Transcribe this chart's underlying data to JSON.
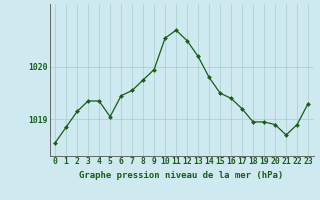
{
  "x": [
    0,
    1,
    2,
    3,
    4,
    5,
    6,
    7,
    8,
    9,
    10,
    11,
    12,
    13,
    14,
    15,
    16,
    17,
    18,
    19,
    20,
    21,
    22,
    23
  ],
  "y": [
    1018.55,
    1018.85,
    1019.15,
    1019.35,
    1019.35,
    1019.05,
    1019.45,
    1019.55,
    1019.75,
    1019.95,
    1020.55,
    1020.7,
    1020.5,
    1020.2,
    1019.8,
    1019.5,
    1019.4,
    1019.2,
    1018.95,
    1018.95,
    1018.9,
    1018.7,
    1018.9,
    1019.3
  ],
  "line_color": "#1a5c1a",
  "marker_color": "#1a5c1a",
  "bg_color": "#ceeaf0",
  "grid_color": "#aacccc",
  "title": "Graphe pression niveau de la mer (hPa)",
  "xlabel_ticks": [
    0,
    1,
    2,
    3,
    4,
    5,
    6,
    7,
    8,
    9,
    10,
    11,
    12,
    13,
    14,
    15,
    16,
    17,
    18,
    19,
    20,
    21,
    22,
    23
  ],
  "ytick_labels": [
    1019,
    1020
  ],
  "ylim_min": 1018.3,
  "ylim_max": 1021.2,
  "title_fontsize": 6.5,
  "tick_fontsize": 5.8,
  "marker_size": 2.0,
  "line_width": 0.9
}
